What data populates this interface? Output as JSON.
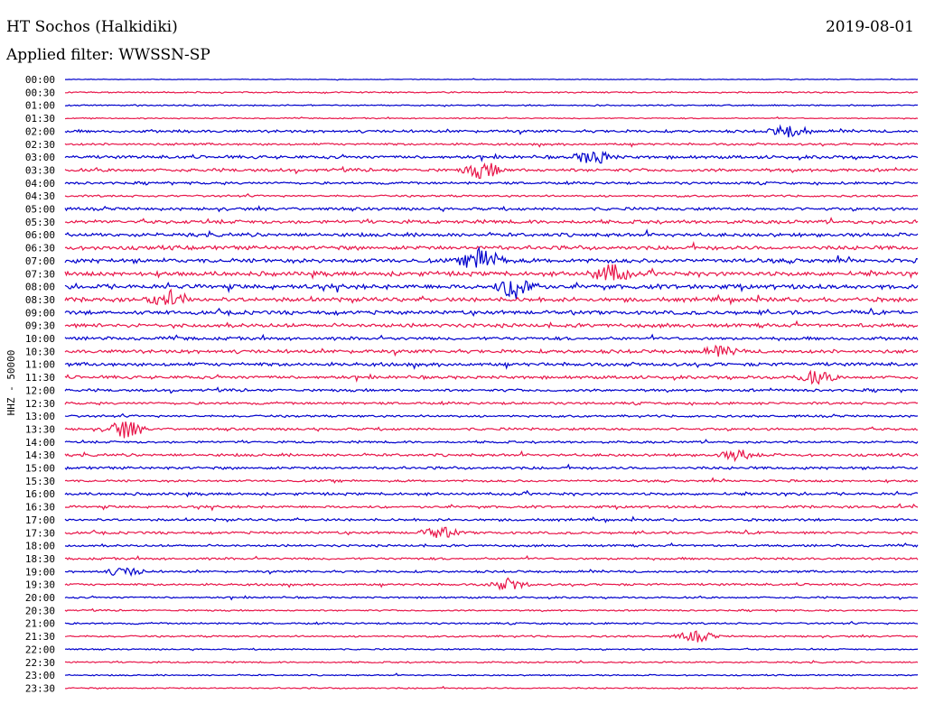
{
  "header": {
    "station": "HT Sochos (Halkidiki)",
    "date": "2019-08-01",
    "filter": "Applied filter: WWSSN-SP"
  },
  "chart_data": {
    "type": "line",
    "title": "HT Sochos (Halkidiki)",
    "ylabel": "HHZ - 50000",
    "row_labels": [
      "00:00",
      "00:30",
      "01:00",
      "01:30",
      "02:00",
      "02:30",
      "03:00",
      "03:30",
      "04:00",
      "04:30",
      "05:00",
      "05:30",
      "06:00",
      "06:30",
      "07:00",
      "07:30",
      "08:00",
      "08:30",
      "09:00",
      "09:30",
      "10:00",
      "10:30",
      "11:00",
      "11:30",
      "12:00",
      "12:30",
      "13:00",
      "13:30",
      "14:00",
      "14:30",
      "15:00",
      "15:30",
      "16:00",
      "16:30",
      "17:00",
      "17:30",
      "18:00",
      "18:30",
      "19:00",
      "19:30",
      "20:00",
      "20:30",
      "21:00",
      "21:30",
      "22:00",
      "22:30",
      "23:00",
      "23:30"
    ],
    "colors": [
      "#0000cc",
      "#e8164a"
    ],
    "trace_amplitude": [
      0.3,
      0.6,
      0.6,
      0.5,
      1.2,
      1.0,
      1.4,
      1.4,
      1.1,
      0.9,
      1.3,
      1.6,
      1.6,
      1.8,
      1.9,
      2.0,
      2.0,
      1.9,
      1.7,
      1.7,
      1.4,
      1.6,
      1.6,
      1.4,
      1.2,
      1.1,
      1.0,
      1.1,
      1.0,
      1.2,
      1.2,
      1.0,
      1.2,
      1.1,
      1.1,
      1.1,
      1.0,
      1.0,
      1.0,
      1.0,
      0.8,
      0.7,
      0.8,
      0.8,
      0.6,
      0.7,
      0.6,
      0.6
    ],
    "events": [
      {
        "row": 7,
        "x": 0.49,
        "amp": 9
      },
      {
        "row": 15,
        "x": 0.64,
        "amp": 10
      },
      {
        "row": 16,
        "x": 0.53,
        "amp": 14
      },
      {
        "row": 14,
        "x": 0.49,
        "amp": 14
      },
      {
        "row": 17,
        "x": 0.12,
        "amp": 7
      },
      {
        "row": 27,
        "x": 0.07,
        "amp": 10
      },
      {
        "row": 35,
        "x": 0.44,
        "amp": 6
      },
      {
        "row": 39,
        "x": 0.52,
        "amp": 6
      },
      {
        "row": 23,
        "x": 0.88,
        "amp": 7
      },
      {
        "row": 4,
        "x": 0.85,
        "amp": 7
      },
      {
        "row": 6,
        "x": 0.62,
        "amp": 8
      },
      {
        "row": 21,
        "x": 0.77,
        "amp": 5
      },
      {
        "row": 29,
        "x": 0.79,
        "amp": 6
      },
      {
        "row": 43,
        "x": 0.74,
        "amp": 6
      },
      {
        "row": 38,
        "x": 0.07,
        "amp": 5
      }
    ]
  }
}
